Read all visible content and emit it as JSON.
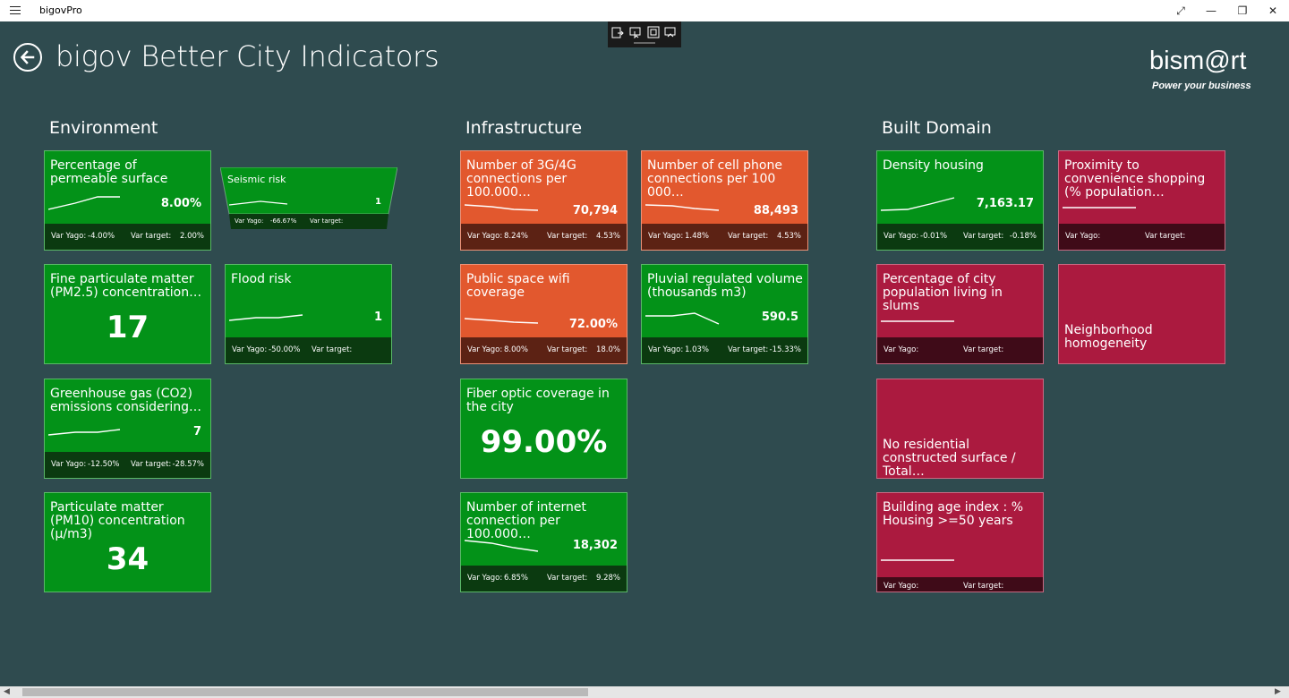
{
  "app": {
    "title": "bigovPro",
    "page_title": "bigov Better City Indicators",
    "logo": {
      "brand": "bism@rt",
      "tagline": "Power your business"
    }
  },
  "colors": {
    "background": "#2f4b4f",
    "green": "#039218",
    "orange": "#e2582e",
    "crimson": "#ab1a3f"
  },
  "sections": {
    "environment": {
      "heading": "Environment",
      "tiles": {
        "permeable": {
          "title": "Percentage of permeable surface",
          "value": "8.00%",
          "var_yago_label": "Var Yago:",
          "var_yago": "-4.00%",
          "var_target_label": "Var target:",
          "var_target": "2.00%"
        },
        "seismic": {
          "title": "Seismic risk",
          "value": "1",
          "var_yago_label": "Var Yago:",
          "var_yago": "-66.67%",
          "var_target_label": "Var target:"
        },
        "pm25": {
          "title": "Fine particulate matter (PM2.5) concentration…",
          "value": "17"
        },
        "flood": {
          "title": "Flood risk",
          "value": "1",
          "var_yago_label": "Var Yago:",
          "var_yago": "-50.00%",
          "var_target_label": "Var target:"
        },
        "ghg": {
          "title": "Greenhouse gas (CO2) emissions considering…",
          "value": "7",
          "var_yago_label": "Var Yago:",
          "var_yago": "-12.50%",
          "var_target_label": "Var target:",
          "var_target": "-28.57%"
        },
        "pm10": {
          "title": "Particulate matter (PM10) concentration (µ/m3)",
          "value": "34"
        }
      }
    },
    "infrastructure": {
      "heading": "Infrastructure",
      "tiles": {
        "conn3g4g": {
          "title": "Number of 3G/4G connections per 100.000…",
          "value": "70,794",
          "var_yago_label": "Var Yago:",
          "var_yago": "8.24%",
          "var_target_label": "Var target:",
          "var_target": "4.53%"
        },
        "cellphone": {
          "title": "Number of cell phone connections per 100 000…",
          "value": "88,493",
          "var_yago_label": "Var Yago:",
          "var_yago": "1.48%",
          "var_target_label": "Var target:",
          "var_target": "4.53%"
        },
        "wifi": {
          "title": "Public space  wifi coverage",
          "value": "72.00%",
          "var_yago_label": "Var Yago:",
          "var_yago": "8.00%",
          "var_target_label": "Var target:",
          "var_target": "18.0%"
        },
        "pluvial": {
          "title": "Pluvial regulated volume (thousands m3)",
          "value": "590.5",
          "var_yago_label": "Var Yago:",
          "var_yago": "1.03%",
          "var_target_label": "Var target:",
          "var_target": "-15.33%"
        },
        "fiber": {
          "title": "Fiber optic coverage in the city",
          "value": "99.00%"
        },
        "internet": {
          "title": "Number of internet connection per 100.000…",
          "value": "18,302",
          "var_yago_label": "Var Yago:",
          "var_yago": "6.85%",
          "var_target_label": "Var target:",
          "var_target": "9.28%"
        }
      }
    },
    "built": {
      "heading": "Built Domain",
      "tiles": {
        "density": {
          "title": "Density housing",
          "value": "7,163.17",
          "var_yago_label": "Var Yago:",
          "var_yago": "-0.01%",
          "var_target_label": "Var target:",
          "var_target": "-0.18%"
        },
        "proximity": {
          "title": "Proximity to convenience shopping (% population…",
          "var_yago_label": "Var Yago:",
          "var_target_label": "Var target:"
        },
        "slums": {
          "title": "Percentage of city population living in slums",
          "var_yago_label": "Var Yago:",
          "var_target_label": "Var target:"
        },
        "homogeneity": {
          "title": "Neighborhood homogeneity"
        },
        "noresidential": {
          "title": "No residential constructed surface / Total…"
        },
        "buildingage": {
          "title": "Building age index : % Housing >=50 years",
          "var_yago_label": "Var Yago:",
          "var_target_label": "Var target:"
        }
      }
    }
  },
  "icons": [
    "menu-icon",
    "back-arrow-icon",
    "fullscreen-icon",
    "minimize-icon",
    "restore-icon",
    "close-icon"
  ]
}
